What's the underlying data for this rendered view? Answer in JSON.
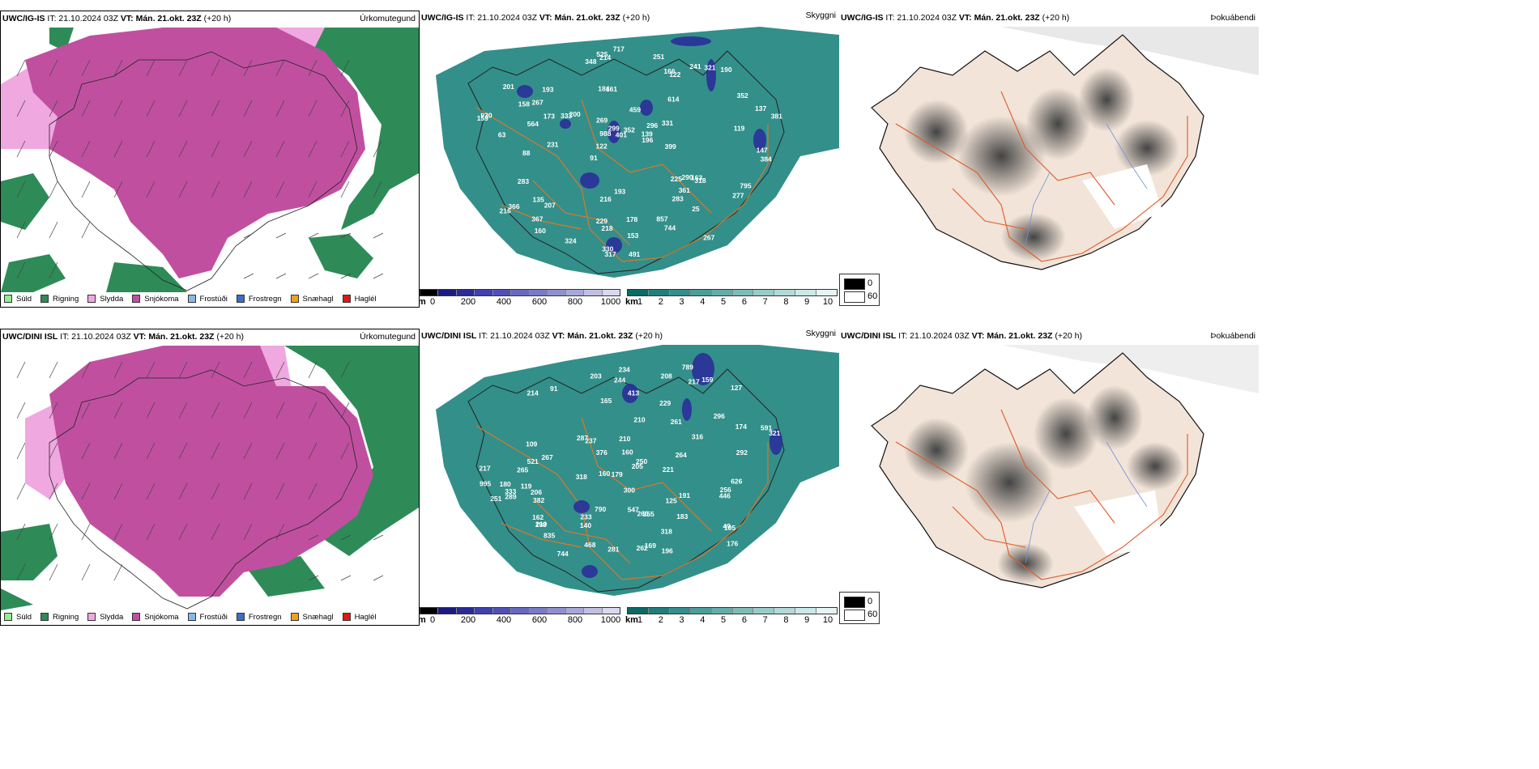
{
  "rows": [
    {
      "model": "UWC/IG-IS",
      "it_label": "IT: 21.10.2024 03Z",
      "vt_label": "VT:",
      "vt_value": "Mán. 21.okt. 23Z",
      "lead": "(+20 h)",
      "precip_title": "Úrkomutegund",
      "cloud_title": "Skyggni",
      "fog_title": "Þokuábendi",
      "visibility_labels": [
        "63",
        "91",
        "614",
        "184",
        "459",
        "366",
        "200",
        "160",
        "161",
        "296",
        "318",
        "201",
        "214",
        "225",
        "137",
        "122",
        "229",
        "988",
        "193",
        "241",
        "207",
        "163",
        "333",
        "564",
        "283",
        "381",
        "139",
        "218",
        "196",
        "216",
        "352",
        "361",
        "744",
        "367",
        "178",
        "190",
        "717",
        "231",
        "930",
        "267",
        "321",
        "251",
        "348",
        "299",
        "216",
        "324",
        "290",
        "173",
        "158",
        "269",
        "153",
        "352",
        "399",
        "795",
        "330",
        "119",
        "193",
        "267",
        "491",
        "857",
        "525",
        "384",
        "331",
        "25",
        "401",
        "277",
        "159",
        "317",
        "166",
        "122",
        "88",
        "147",
        "283",
        "135"
      ]
    },
    {
      "model": "UWC/DINI ISL",
      "it_label": "IT: 21.10.2024 03Z",
      "vt_label": "VT:",
      "vt_value": "Mán. 21.okt. 23Z",
      "lead": "(+20 h)",
      "precip_title": "Úrkomutegund",
      "cloud_title": "Skyggni",
      "fog_title": "Þokuábendi",
      "visibility_labels": [
        "159",
        "91",
        "296",
        "260",
        "267",
        "382",
        "219",
        "174",
        "316",
        "180",
        "234",
        "183",
        "205",
        "203",
        "176",
        "217",
        "198",
        "196",
        "244",
        "165",
        "250",
        "160",
        "468",
        "333",
        "208",
        "210",
        "191",
        "109",
        "835",
        "169",
        "547",
        "105",
        "289",
        "591",
        "221",
        "261",
        "256",
        "321",
        "413",
        "281",
        "206",
        "995",
        "521",
        "125",
        "262",
        "233",
        "318",
        "237",
        "210",
        "292",
        "318",
        "355",
        "287",
        "49",
        "214",
        "265",
        "789",
        "229",
        "160",
        "790",
        "162",
        "264",
        "626",
        "446",
        "744",
        "376",
        "119",
        "217",
        "300",
        "251",
        "179",
        "140",
        "127"
      ]
    }
  ],
  "precip_legend": [
    {
      "label": "Súld",
      "color": "#90ee90"
    },
    {
      "label": "Rigning",
      "color": "#2e8b57"
    },
    {
      "label": "Slydda",
      "color": "#f0a8e0"
    },
    {
      "label": "Snjókoma",
      "color": "#c0509f"
    },
    {
      "label": "Frostúði",
      "color": "#87b9e8"
    },
    {
      "label": "Frostregn",
      "color": "#3a6fc4"
    },
    {
      "label": "Snæhagl",
      "color": "#f0a020"
    },
    {
      "label": "Haglél",
      "color": "#e01818"
    }
  ],
  "cloud_base_bar": {
    "unit": "m",
    "ticks": [
      "0",
      "200",
      "400",
      "600",
      "800",
      "1000"
    ],
    "colors": [
      "#000000",
      "#1a1a80",
      "#2a2a9a",
      "#4040b0",
      "#5050b8",
      "#6868c0",
      "#7a7ac8",
      "#9090d0",
      "#a8a8d8",
      "#c0c0e4",
      "#d8d8f0"
    ]
  },
  "visibility_bar": {
    "unit": "km",
    "ticks": [
      "1",
      "2",
      "3",
      "4",
      "5",
      "6",
      "7",
      "8",
      "9",
      "10"
    ],
    "colors": [
      "#0a6a66",
      "#1f7f7a",
      "#338f8a",
      "#4a9f9a",
      "#64aea9",
      "#7dbdb8",
      "#98ccc8",
      "#b2dad7",
      "#cde8e6",
      "#e6f4f3"
    ]
  },
  "fog_legend": [
    {
      "label": "0",
      "color": "#000000"
    },
    {
      "label": "60",
      "color": "#ffffff"
    }
  ],
  "colors": {
    "snow": "#c0509f",
    "rain": "#2e8b57",
    "sleet": "#f0a8e0",
    "sea_green": "#338f8a",
    "land_beige": "#f2e4d8",
    "road": "#e05a2a",
    "river": "#7090e0",
    "coast": "#111111"
  }
}
